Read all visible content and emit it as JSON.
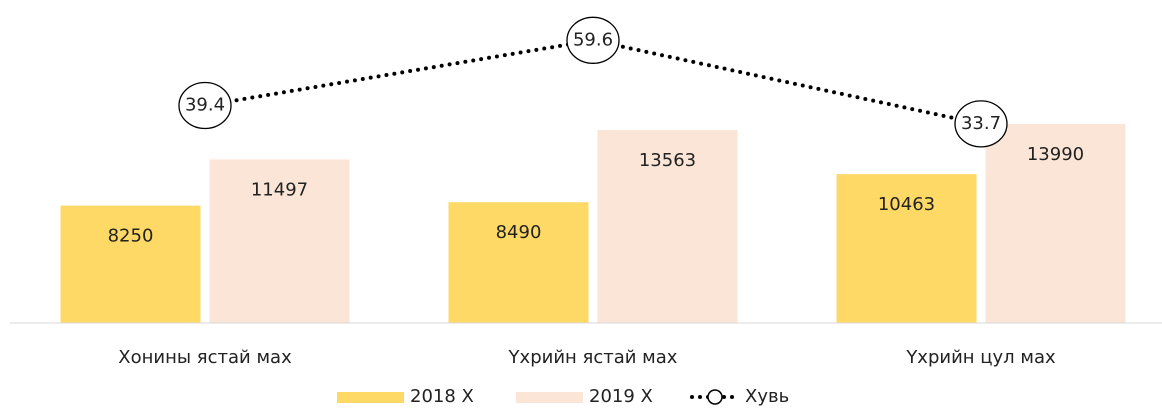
{
  "chart_data": {
    "type": "bar",
    "categories": [
      "Хонины ястай мах",
      "Үхрийн ястай мах",
      "Үхрийн цул мах"
    ],
    "series": [
      {
        "name": "2018 Х",
        "color": "#fed966",
        "values": [
          8250,
          8490,
          10463
        ]
      },
      {
        "name": "2019 Х",
        "color": "#fbe5d6",
        "values": [
          11497,
          13563,
          13990
        ]
      },
      {
        "name": "Хувь",
        "type": "line",
        "axis": "y2",
        "color": "#000000",
        "values": [
          39.4,
          59.6,
          33.7
        ]
      }
    ],
    "ylim": [
      0,
      22000
    ],
    "y2lim": [
      -28,
      69
    ],
    "legend": "bottom"
  }
}
